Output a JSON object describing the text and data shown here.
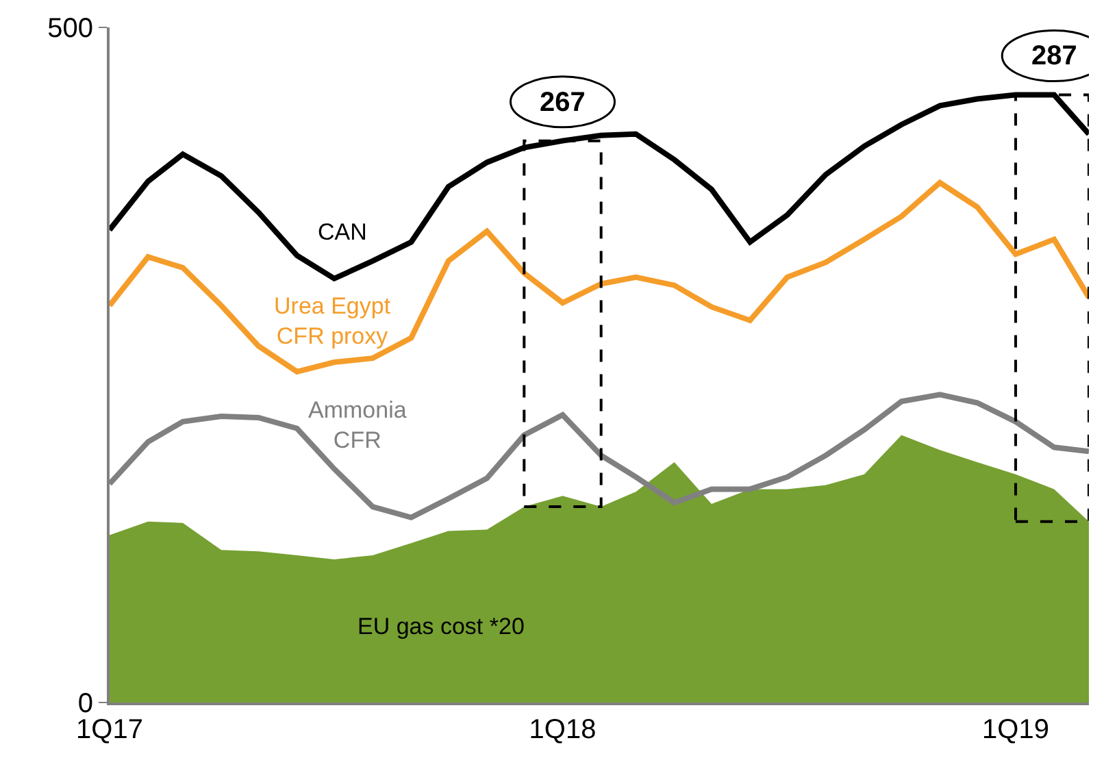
{
  "chart_data": {
    "type": "line",
    "x": [
      "2017-01",
      "2017-02",
      "2017-03",
      "2017-04",
      "2017-05",
      "2017-06",
      "2017-07",
      "2017-08",
      "2017-09",
      "2017-10",
      "2017-11",
      "2017-12",
      "2018-01",
      "2018-02",
      "2018-03",
      "2018-04",
      "2018-05",
      "2018-06",
      "2018-07",
      "2018-08",
      "2018-09",
      "2018-10",
      "2018-11",
      "2018-12",
      "2019-01",
      "2019-02",
      "2019-03"
    ],
    "series": [
      {
        "name": "CAN",
        "color": "#000000",
        "values": [
          350,
          386,
          406,
          390,
          363,
          331,
          314,
          327,
          341,
          382,
          400,
          411,
          416,
          420,
          421,
          402,
          380,
          341,
          361,
          391,
          412,
          428,
          442,
          447,
          450,
          450,
          421
        ]
      },
      {
        "name": "Urea Egypt\nCFR proxy",
        "color": "#f59d2a",
        "values": [
          294,
          330,
          322,
          294,
          264,
          245,
          252,
          255,
          270,
          327,
          349,
          318,
          296,
          310,
          315,
          309,
          293,
          283,
          315,
          326,
          343,
          360,
          385,
          367,
          332,
          343,
          300
        ]
      },
      {
        "name": "Ammonia\nCFR",
        "color": "#808080",
        "values": [
          162,
          193,
          208,
          212,
          211,
          203,
          173,
          145,
          137,
          151,
          166,
          198,
          213,
          183,
          167,
          148,
          158,
          158,
          167,
          183,
          202,
          223,
          228,
          222,
          208,
          189,
          186
        ]
      },
      {
        "name": "EU gas cost *20",
        "type": "area",
        "color": "#76a032",
        "values": [
          124,
          134,
          133,
          113,
          112,
          109,
          106,
          109,
          118,
          127,
          128,
          145,
          153,
          145,
          156,
          178,
          147,
          158,
          158,
          161,
          169,
          198,
          187,
          178,
          169,
          158,
          134
        ]
      }
    ],
    "xlim": [
      "2017-01",
      "2019-03"
    ],
    "xticks": [
      {
        "value": "2017-01",
        "label": "1Q17"
      },
      {
        "value": "2018-01",
        "label": "1Q18"
      },
      {
        "value": "2019-01",
        "label": "1Q19"
      }
    ],
    "ylim": [
      0,
      500
    ],
    "yticks": [
      0,
      500
    ],
    "annotations": [
      {
        "text": "267",
        "x": "2018-01",
        "y": 416
      },
      {
        "text": "287",
        "x": "2019-02",
        "y": 450
      }
    ],
    "grid": false,
    "legend": false,
    "marker": "none",
    "line_style": "solid"
  }
}
